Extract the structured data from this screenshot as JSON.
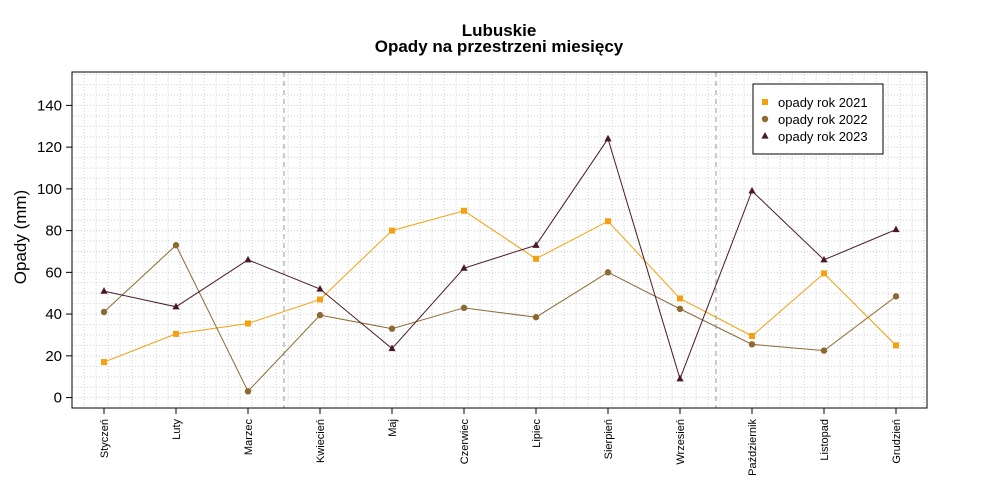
{
  "chart_data": {
    "type": "line",
    "title": "Lubuskie",
    "subtitle": "Opady na przestrzeni miesięcy",
    "ylabel": "Opady (mm)",
    "xlabel": "",
    "ylim": [
      -5,
      156
    ],
    "yticks": [
      0,
      20,
      40,
      60,
      80,
      100,
      120,
      140
    ],
    "grid": true,
    "legend_position": "top-right",
    "categories": [
      "Styczeń",
      "Luty",
      "Marzec",
      "Kwiecień",
      "Maj",
      "Czerwiec",
      "Lipiec",
      "Sierpień",
      "Wrzesień",
      "Październik",
      "Listopad",
      "Grudzień"
    ],
    "series": [
      {
        "name": "opady rok 2021",
        "color": "#F5A00F",
        "marker": "square",
        "values": [
          17,
          30.5,
          35.5,
          47,
          80,
          89.5,
          66.5,
          84.5,
          47.5,
          29.5,
          59.5,
          25
        ]
      },
      {
        "name": "opady rok 2022",
        "color": "#8C6A32",
        "marker": "circle",
        "values": [
          41,
          73,
          3,
          39.5,
          33,
          43,
          38.5,
          60,
          42.5,
          25.5,
          22.5,
          48.5
        ]
      },
      {
        "name": "opady rok 2023",
        "color": "#4A1A24",
        "marker": "triangle",
        "values": [
          51,
          43.5,
          66,
          52,
          23.5,
          62,
          73,
          124,
          9,
          99,
          66,
          80.5
        ]
      }
    ],
    "season_dividers_after": [
      "Marzec",
      "Wrzesień"
    ]
  }
}
